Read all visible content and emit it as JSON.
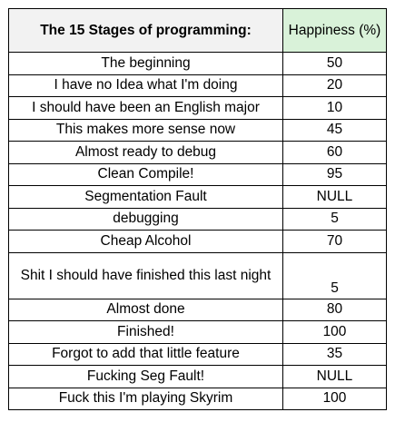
{
  "table": {
    "title": "The 15 Stages of programming:",
    "header_happiness": "Happiness (%)",
    "rows": [
      {
        "stage": "The beginning",
        "happiness": "50"
      },
      {
        "stage": "I have no Idea what I'm doing",
        "happiness": "20"
      },
      {
        "stage": "I should have been an English major",
        "happiness": "10"
      },
      {
        "stage": "This makes more sense now",
        "happiness": "45"
      },
      {
        "stage": "Almost ready to debug",
        "happiness": "60"
      },
      {
        "stage": "Clean Compile!",
        "happiness": "95"
      },
      {
        "stage": "Segmentation Fault",
        "happiness": "NULL"
      },
      {
        "stage": "debugging",
        "happiness": "5"
      },
      {
        "stage": "Cheap Alcohol",
        "happiness": "70"
      },
      {
        "stage": "Shit I should have finished this last night",
        "happiness": "5"
      },
      {
        "stage": "Almost done",
        "happiness": "80"
      },
      {
        "stage": "Finished!",
        "happiness": "100"
      },
      {
        "stage": "Forgot to add that little feature",
        "happiness": "35"
      },
      {
        "stage": "Fucking Seg Fault!",
        "happiness": "NULL"
      },
      {
        "stage": "Fuck this I'm playing Skyrim",
        "happiness": "100"
      }
    ]
  },
  "colors": {
    "title_text": "#f4911f",
    "title_bg": "#f2f2f2",
    "happiness_header_text": "#00a040",
    "happiness_header_bg": "#d9f2d9"
  }
}
